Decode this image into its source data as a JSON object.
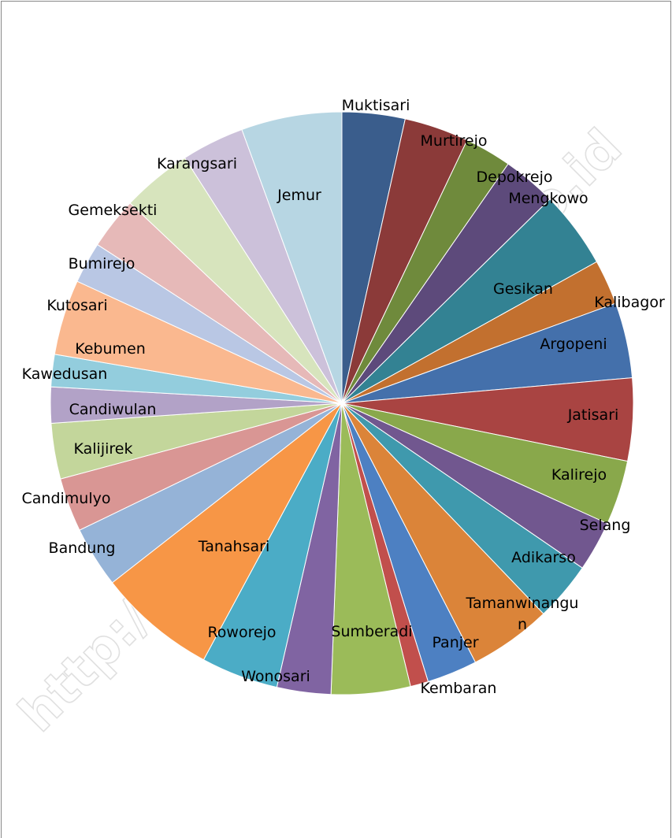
{
  "watermark": "http://kebumenkab.bps.go.id",
  "chart_data": {
    "type": "pie",
    "start_angle_deg": 0,
    "direction": "clockwise",
    "legend": "none",
    "slices": [
      {
        "label": "Muktisari",
        "value": 3.5,
        "color": "#3a5d8c"
      },
      {
        "label": "Murtirejo",
        "value": 3.6,
        "color": "#8b3a39"
      },
      {
        "label": "Depokrejo",
        "value": 2.6,
        "color": "#6f8a3c"
      },
      {
        "label": "Mengkowo",
        "value": 3.0,
        "color": "#5d4a7b"
      },
      {
        "label": "Gesikan",
        "value": 4.3,
        "color": "#338293"
      },
      {
        "label": "Kalibagor",
        "value": 2.5,
        "color": "#c2702f"
      },
      {
        "label": "Argopeni",
        "value": 4.2,
        "color": "#4470ab"
      },
      {
        "label": "Jatisari",
        "value": 4.6,
        "color": "#a94442"
      },
      {
        "label": "Kalirejo",
        "value": 3.6,
        "color": "#89a84b"
      },
      {
        "label": "Selang",
        "value": 2.8,
        "color": "#71578f"
      },
      {
        "label": "Adikarso",
        "value": 3.3,
        "color": "#3f99ad"
      },
      {
        "label": "Tamanwinangun",
        "value": 4.6,
        "color": "#db8439"
      },
      {
        "label": "Panjer",
        "value": 2.8,
        "color": "#4d80c2"
      },
      {
        "label": "Kembaran",
        "value": 1.0,
        "color": "#c14f4c"
      },
      {
        "label": "Sumberadi",
        "value": 4.4,
        "color": "#9bbb59"
      },
      {
        "label": "Wonosari",
        "value": 3.0,
        "color": "#8064a2"
      },
      {
        "label": "Roworejo",
        "value": 4.3,
        "color": "#4bacc6"
      },
      {
        "label": "Tanahsari",
        "value": 6.6,
        "color": "#f79646"
      },
      {
        "label": "Bandung",
        "value": 3.4,
        "color": "#95b3d7"
      },
      {
        "label": "Candimulyo",
        "value": 3.0,
        "color": "#d99694"
      },
      {
        "label": "Kalijirek",
        "value": 3.1,
        "color": "#c3d69b"
      },
      {
        "label": "Candiwulan",
        "value": 2.0,
        "color": "#b2a2c7"
      },
      {
        "label": "Kawedusan",
        "value": 1.8,
        "color": "#93cddd"
      },
      {
        "label": "Kebumen",
        "value": 4.2,
        "color": "#fab88f"
      },
      {
        "label": "Kutosari",
        "value": 2.3,
        "color": "#b9c7e4"
      },
      {
        "label": "Bumirejo",
        "value": 2.9,
        "color": "#e6b9b8"
      },
      {
        "label": "Gemeksekti",
        "value": 3.9,
        "color": "#d7e4bd"
      },
      {
        "label": "Karangsari",
        "value": 3.5,
        "color": "#ccc1da"
      },
      {
        "label": "Jemur",
        "value": 5.6,
        "color": "#b7d6e3"
      }
    ]
  }
}
